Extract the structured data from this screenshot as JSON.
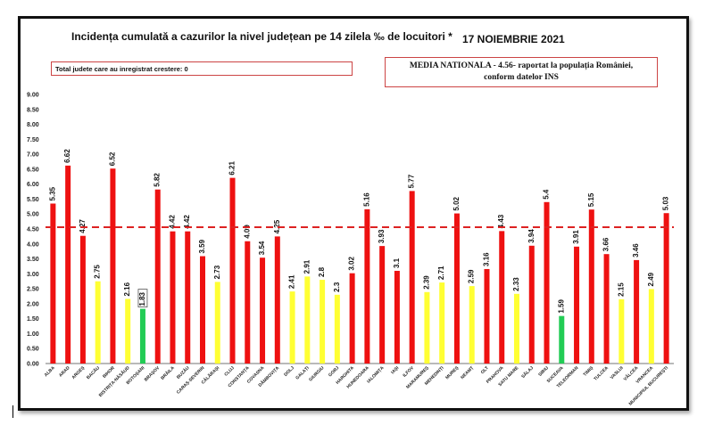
{
  "header": {
    "title": "Incidența cumulată a cazurilor la nivel județean pe 14 zilela ‰ de locuitori *",
    "date": "17 NOIEMBRIE 2021"
  },
  "info": {
    "total_line": "Total judete care au inregistrat crestere: 0",
    "media_line1": "MEDIA NATIONALA - 4.56- raportat la populația României,",
    "media_line2": "conform datelor INS"
  },
  "colors": {
    "red": "#ee1111",
    "yellow": "#ffff33",
    "green": "#22cc55",
    "reference": "#dd2222"
  },
  "chart_data": {
    "type": "bar",
    "ylim": [
      0,
      9
    ],
    "yticks": [
      "0.00",
      "0.50",
      "1.00",
      "1.50",
      "2.00",
      "2.50",
      "3.00",
      "3.50",
      "4.00",
      "4.50",
      "5.00",
      "5.50",
      "6.00",
      "6.50",
      "7.00",
      "7.50",
      "8.00",
      "8.50",
      "9.00"
    ],
    "reference_line": 4.56,
    "categories": [
      "ALBA",
      "ARAD",
      "ARGEȘ",
      "BACĂU",
      "BIHOR",
      "BISTRIȚA-NĂSĂUD",
      "BOTOȘANI",
      "BRAȘOV",
      "BRĂILA",
      "BUZĂU",
      "CARAȘ-SEVERIN",
      "CĂLĂRAȘI",
      "CLUJ",
      "CONSTANȚA",
      "COVASNA",
      "DÂMBOVIȚA",
      "DOLJ",
      "GALAȚI",
      "GIURGIU",
      "GORJ",
      "HARGHITA",
      "HUNEDOARA",
      "IALOMIȚA",
      "IAȘI",
      "ILFOV",
      "MARAMUREȘ",
      "MEHEDINȚI",
      "MUREȘ",
      "NEAMȚ",
      "OLT",
      "PRAHOVA",
      "SATU MARE",
      "SĂLAJ",
      "SIBIU",
      "SUCEAVA",
      "TELEORMAN",
      "TIMIȘ",
      "TULCEA",
      "VASLUI",
      "VÂLCEA",
      "VRANCEA",
      "MUNICIPIUL BUCUREȘTI"
    ],
    "values": [
      5.35,
      6.62,
      4.27,
      2.75,
      6.52,
      2.16,
      1.83,
      5.82,
      4.42,
      4.42,
      3.59,
      2.73,
      6.21,
      4.09,
      3.54,
      4.25,
      2.41,
      2.91,
      2.8,
      2.3,
      3.02,
      5.16,
      3.93,
      3.1,
      5.77,
      2.39,
      2.71,
      5.02,
      2.59,
      3.16,
      4.43,
      2.33,
      3.94,
      5.4,
      1.59,
      3.91,
      5.15,
      3.66,
      2.15,
      3.46,
      2.49,
      5.03
    ],
    "labels": [
      "5.35",
      "6.62",
      "4.27",
      "2.75",
      "6.52",
      "2.16",
      "1.83",
      "5.82",
      "4.42",
      "4.42",
      "3.59",
      "2.73",
      "6.21",
      "4.09",
      "3.54",
      "4.25",
      "2.41",
      "2.91",
      "2.8",
      "2.3",
      "3.02",
      "5.16",
      "3.93",
      "3.1",
      "5.77",
      "2.39",
      "2.71",
      "5.02",
      "2.59",
      "3.16",
      "4.43",
      "2.33",
      "3.94",
      "5.4",
      "1.59",
      "3.91",
      "5.15",
      "3.66",
      "2.15",
      "3.46",
      "2.49",
      "5.03"
    ],
    "bar_colors": [
      "red",
      "red",
      "red",
      "yellow",
      "red",
      "yellow",
      "green",
      "red",
      "red",
      "red",
      "red",
      "yellow",
      "red",
      "red",
      "red",
      "red",
      "yellow",
      "yellow",
      "yellow",
      "yellow",
      "red",
      "red",
      "red",
      "red",
      "red",
      "yellow",
      "yellow",
      "red",
      "yellow",
      "red",
      "red",
      "yellow",
      "red",
      "red",
      "green",
      "red",
      "red",
      "red",
      "yellow",
      "red",
      "yellow",
      "red"
    ]
  }
}
